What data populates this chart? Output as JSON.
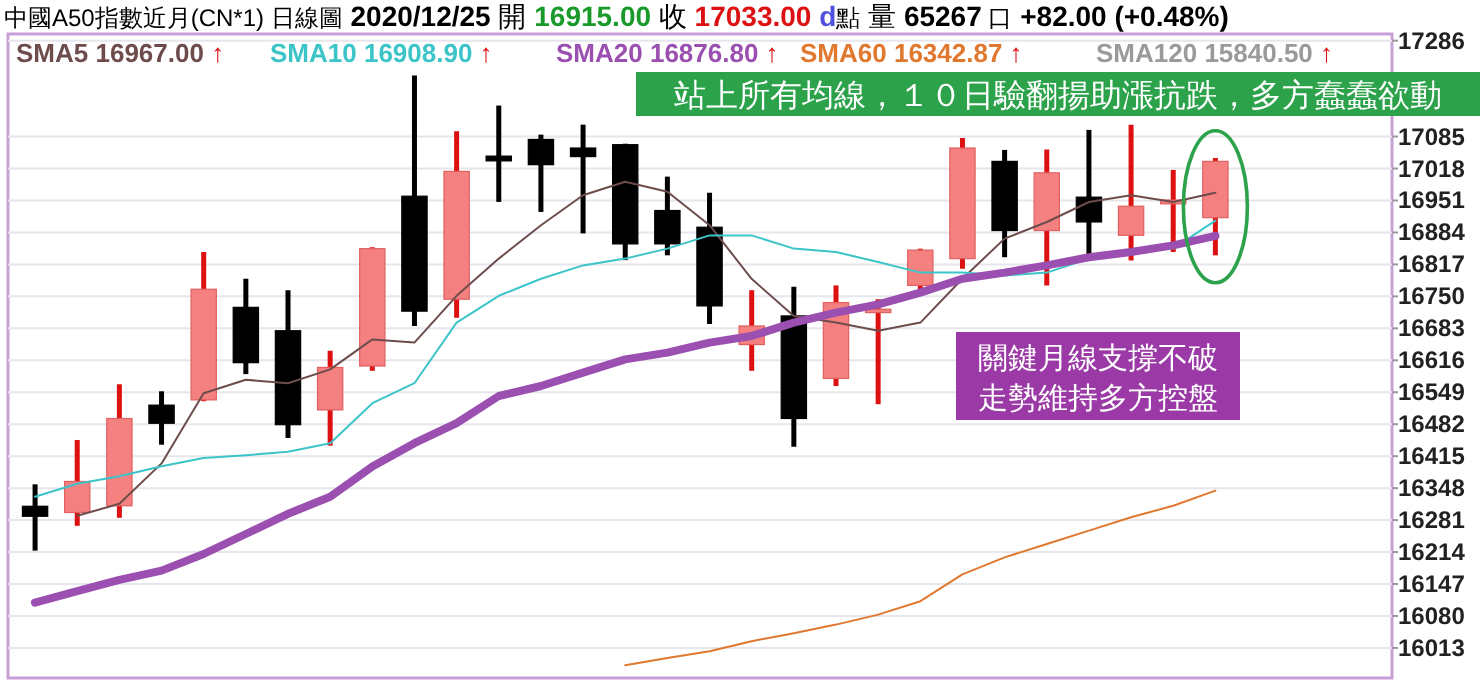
{
  "chart_data": {
    "type": "candlestick",
    "title": "中國A50指數近月(CN*1)",
    "subtitle": "日線圖",
    "categories": [
      null,
      null,
      null,
      null,
      null,
      null,
      null,
      null,
      null,
      null,
      null,
      null,
      null,
      null,
      null,
      null,
      null,
      null,
      null,
      null,
      null,
      null,
      null,
      null,
      null,
      null,
      null,
      null,
      null
    ],
    "ohlc": [
      [
        16310,
        16356,
        16217,
        16289
      ],
      [
        16297,
        16449,
        16269,
        16362
      ],
      [
        16311,
        16566,
        16286,
        16494
      ],
      [
        16522,
        16551,
        16439,
        16484
      ],
      [
        16533,
        16843,
        16530,
        16765
      ],
      [
        16727,
        16787,
        16587,
        16611
      ],
      [
        16678,
        16763,
        16453,
        16481
      ],
      [
        16512,
        16636,
        16437,
        16601
      ],
      [
        16604,
        16853,
        16594,
        16850
      ],
      [
        16960,
        17213,
        16688,
        16719
      ],
      [
        16744,
        17096,
        16705,
        17012
      ],
      [
        17044,
        17150,
        16948,
        17034
      ],
      [
        17079,
        17089,
        16927,
        17026
      ],
      [
        17061,
        17110,
        16882,
        17043
      ],
      [
        17068,
        17070,
        16826,
        16860
      ],
      [
        16930,
        17001,
        16836,
        16860
      ],
      [
        16895,
        16967,
        16692,
        16730
      ],
      [
        16649,
        16763,
        16594,
        16688
      ],
      [
        16709,
        16770,
        16435,
        16494
      ],
      [
        16578,
        16773,
        16562,
        16737
      ],
      [
        16716,
        16744,
        16524,
        16723
      ],
      [
        16773,
        16850,
        16758,
        16847
      ],
      [
        16829,
        17082,
        16808,
        17061
      ],
      [
        17033,
        17057,
        16832,
        16888
      ],
      [
        16888,
        17058,
        16773,
        17009
      ],
      [
        16958,
        17099,
        16836,
        16906
      ],
      [
        16878,
        17110,
        16825,
        16939
      ],
      [
        16944,
        17015,
        16843,
        16952
      ],
      [
        16915,
        17040,
        16836,
        17033
      ]
    ],
    "series": [
      {
        "name": "SMA5 16967.00↑",
        "type": "line",
        "color": "#6e4c4c",
        "values": [
          null,
          16290,
          16315,
          16400,
          16547,
          16575,
          16568,
          16597,
          16660,
          16653,
          16751,
          16829,
          16899,
          16962,
          16990,
          16969,
          16899,
          16787,
          16709,
          16695,
          16678,
          16695,
          16787,
          16871,
          16906,
          16948,
          16962,
          16948,
          16967
        ]
      },
      {
        "name": "SMA10 16908.90↑",
        "type": "line",
        "color": "#3cc4c8",
        "values": [
          16330,
          16357,
          16373,
          16394,
          16411,
          16417,
          16424,
          16442,
          16526,
          16568,
          16695,
          16751,
          16787,
          16815,
          16829,
          16850,
          16878,
          16878,
          16850,
          16843,
          16822,
          16800,
          16800,
          16794,
          16800,
          16829,
          null,
          16850,
          16909
        ]
      },
      {
        "name": "SMA20 16876.80↑",
        "type": "line",
        "color": "#9b4fb0",
        "values": [
          16108,
          16132,
          16156,
          16175,
          16210,
          16252,
          16294,
          16330,
          16393,
          16442,
          16484,
          16541,
          16562,
          16590,
          16618,
          16632,
          16653,
          16667,
          16695,
          16716,
          16733,
          16758,
          16787,
          16800,
          16815,
          16832,
          16843,
          16857,
          16877
        ]
      },
      {
        "name": "SMA60 16342.87↑",
        "type": "line",
        "color": "#e07830",
        "values": [
          null,
          null,
          null,
          null,
          null,
          null,
          null,
          null,
          null,
          null,
          null,
          null,
          null,
          null,
          15977,
          15992,
          16006,
          16027,
          16044,
          16062,
          16083,
          16111,
          16167,
          16203,
          16231,
          16259,
          16287,
          16311,
          16343
        ]
      },
      {
        "name": "SMA120 15840.50↑",
        "type": "line",
        "color": "#9a9a9a",
        "values": [
          null,
          null,
          null,
          null,
          null,
          null,
          null,
          null,
          null,
          null,
          null,
          null,
          null,
          null,
          null,
          null,
          null,
          null,
          null,
          null,
          null,
          null,
          null,
          null,
          null,
          null,
          null,
          null,
          null
        ]
      }
    ],
    "ylim": [
      15950,
      17300
    ],
    "yticks": [
      17286,
      17085,
      17018,
      16951,
      16884,
      16817,
      16750,
      16683,
      16616,
      16549,
      16482,
      16415,
      16348,
      16281,
      16214,
      16147,
      16080,
      16013
    ],
    "grid": "y",
    "legend": "top",
    "annotations": [
      "2020/12/25",
      "開",
      "16915.00",
      "收",
      "17033.00",
      "d",
      "點",
      "量",
      "65267",
      "口",
      "+82.00 (+0.48%)",
      "站上所有均線，１０日驗翻揚助漲抗跌，多方蠢蠢欲動",
      "關鍵月線支撐不破",
      "走勢維持多方控盤"
    ]
  }
}
